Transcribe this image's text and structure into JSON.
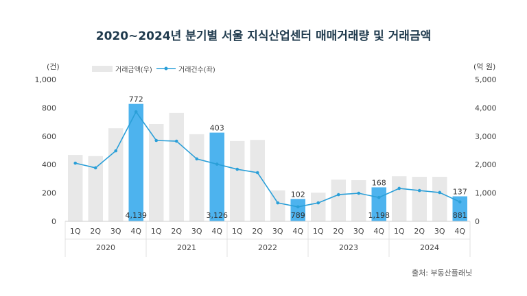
{
  "chart_data": {
    "type": "bar+line",
    "title": "2020~2024년 분기별 서울 지식산업센터 매매거래량 및 거래금액",
    "left_unit": "(건)",
    "right_unit": "(억 원)",
    "left_ylim": [
      0,
      1000
    ],
    "right_ylim": [
      0,
      5000
    ],
    "left_ticks": [
      "0",
      "200",
      "400",
      "600",
      "800",
      "1,000"
    ],
    "right_ticks": [
      "0",
      "1,000",
      "2,000",
      "3,000",
      "4,000",
      "5,000"
    ],
    "quarters": [
      "1Q",
      "2Q",
      "3Q",
      "4Q",
      "1Q",
      "2Q",
      "3Q",
      "4Q",
      "1Q",
      "2Q",
      "3Q",
      "4Q",
      "1Q",
      "2Q",
      "3Q",
      "4Q",
      "1Q",
      "2Q",
      "3Q",
      "4Q"
    ],
    "years": [
      "2020",
      "2021",
      "2022",
      "2023",
      "2024"
    ],
    "grid": false,
    "legend_placement": "top-left",
    "series": [
      {
        "name": "거래금액(우)",
        "type": "bar",
        "axis": "right",
        "color": "#e8e8e8",
        "highlight_color": "#4db3ee",
        "values": [
          2340,
          2300,
          3280,
          4139,
          3430,
          3820,
          3070,
          3126,
          2830,
          2870,
          1090,
          789,
          1010,
          1470,
          1450,
          1198,
          1590,
          1570,
          1570,
          881
        ],
        "highlighted": [
          3,
          7,
          11,
          15,
          19
        ],
        "labels": {
          "3": "4,139",
          "7": "3,126",
          "11": "789",
          "15": "1,198",
          "19": "881"
        }
      },
      {
        "name": "거래건수(좌)",
        "type": "line",
        "axis": "left",
        "color": "#2a9fd8",
        "values": [
          410,
          377,
          497,
          772,
          570,
          565,
          440,
          403,
          367,
          343,
          130,
          102,
          130,
          188,
          198,
          168,
          232,
          217,
          203,
          137
        ],
        "labels": {
          "3": "772",
          "7": "403",
          "11": "102",
          "15": "168",
          "19": "137"
        }
      }
    ]
  },
  "source": "출처: 부동산플래닛"
}
